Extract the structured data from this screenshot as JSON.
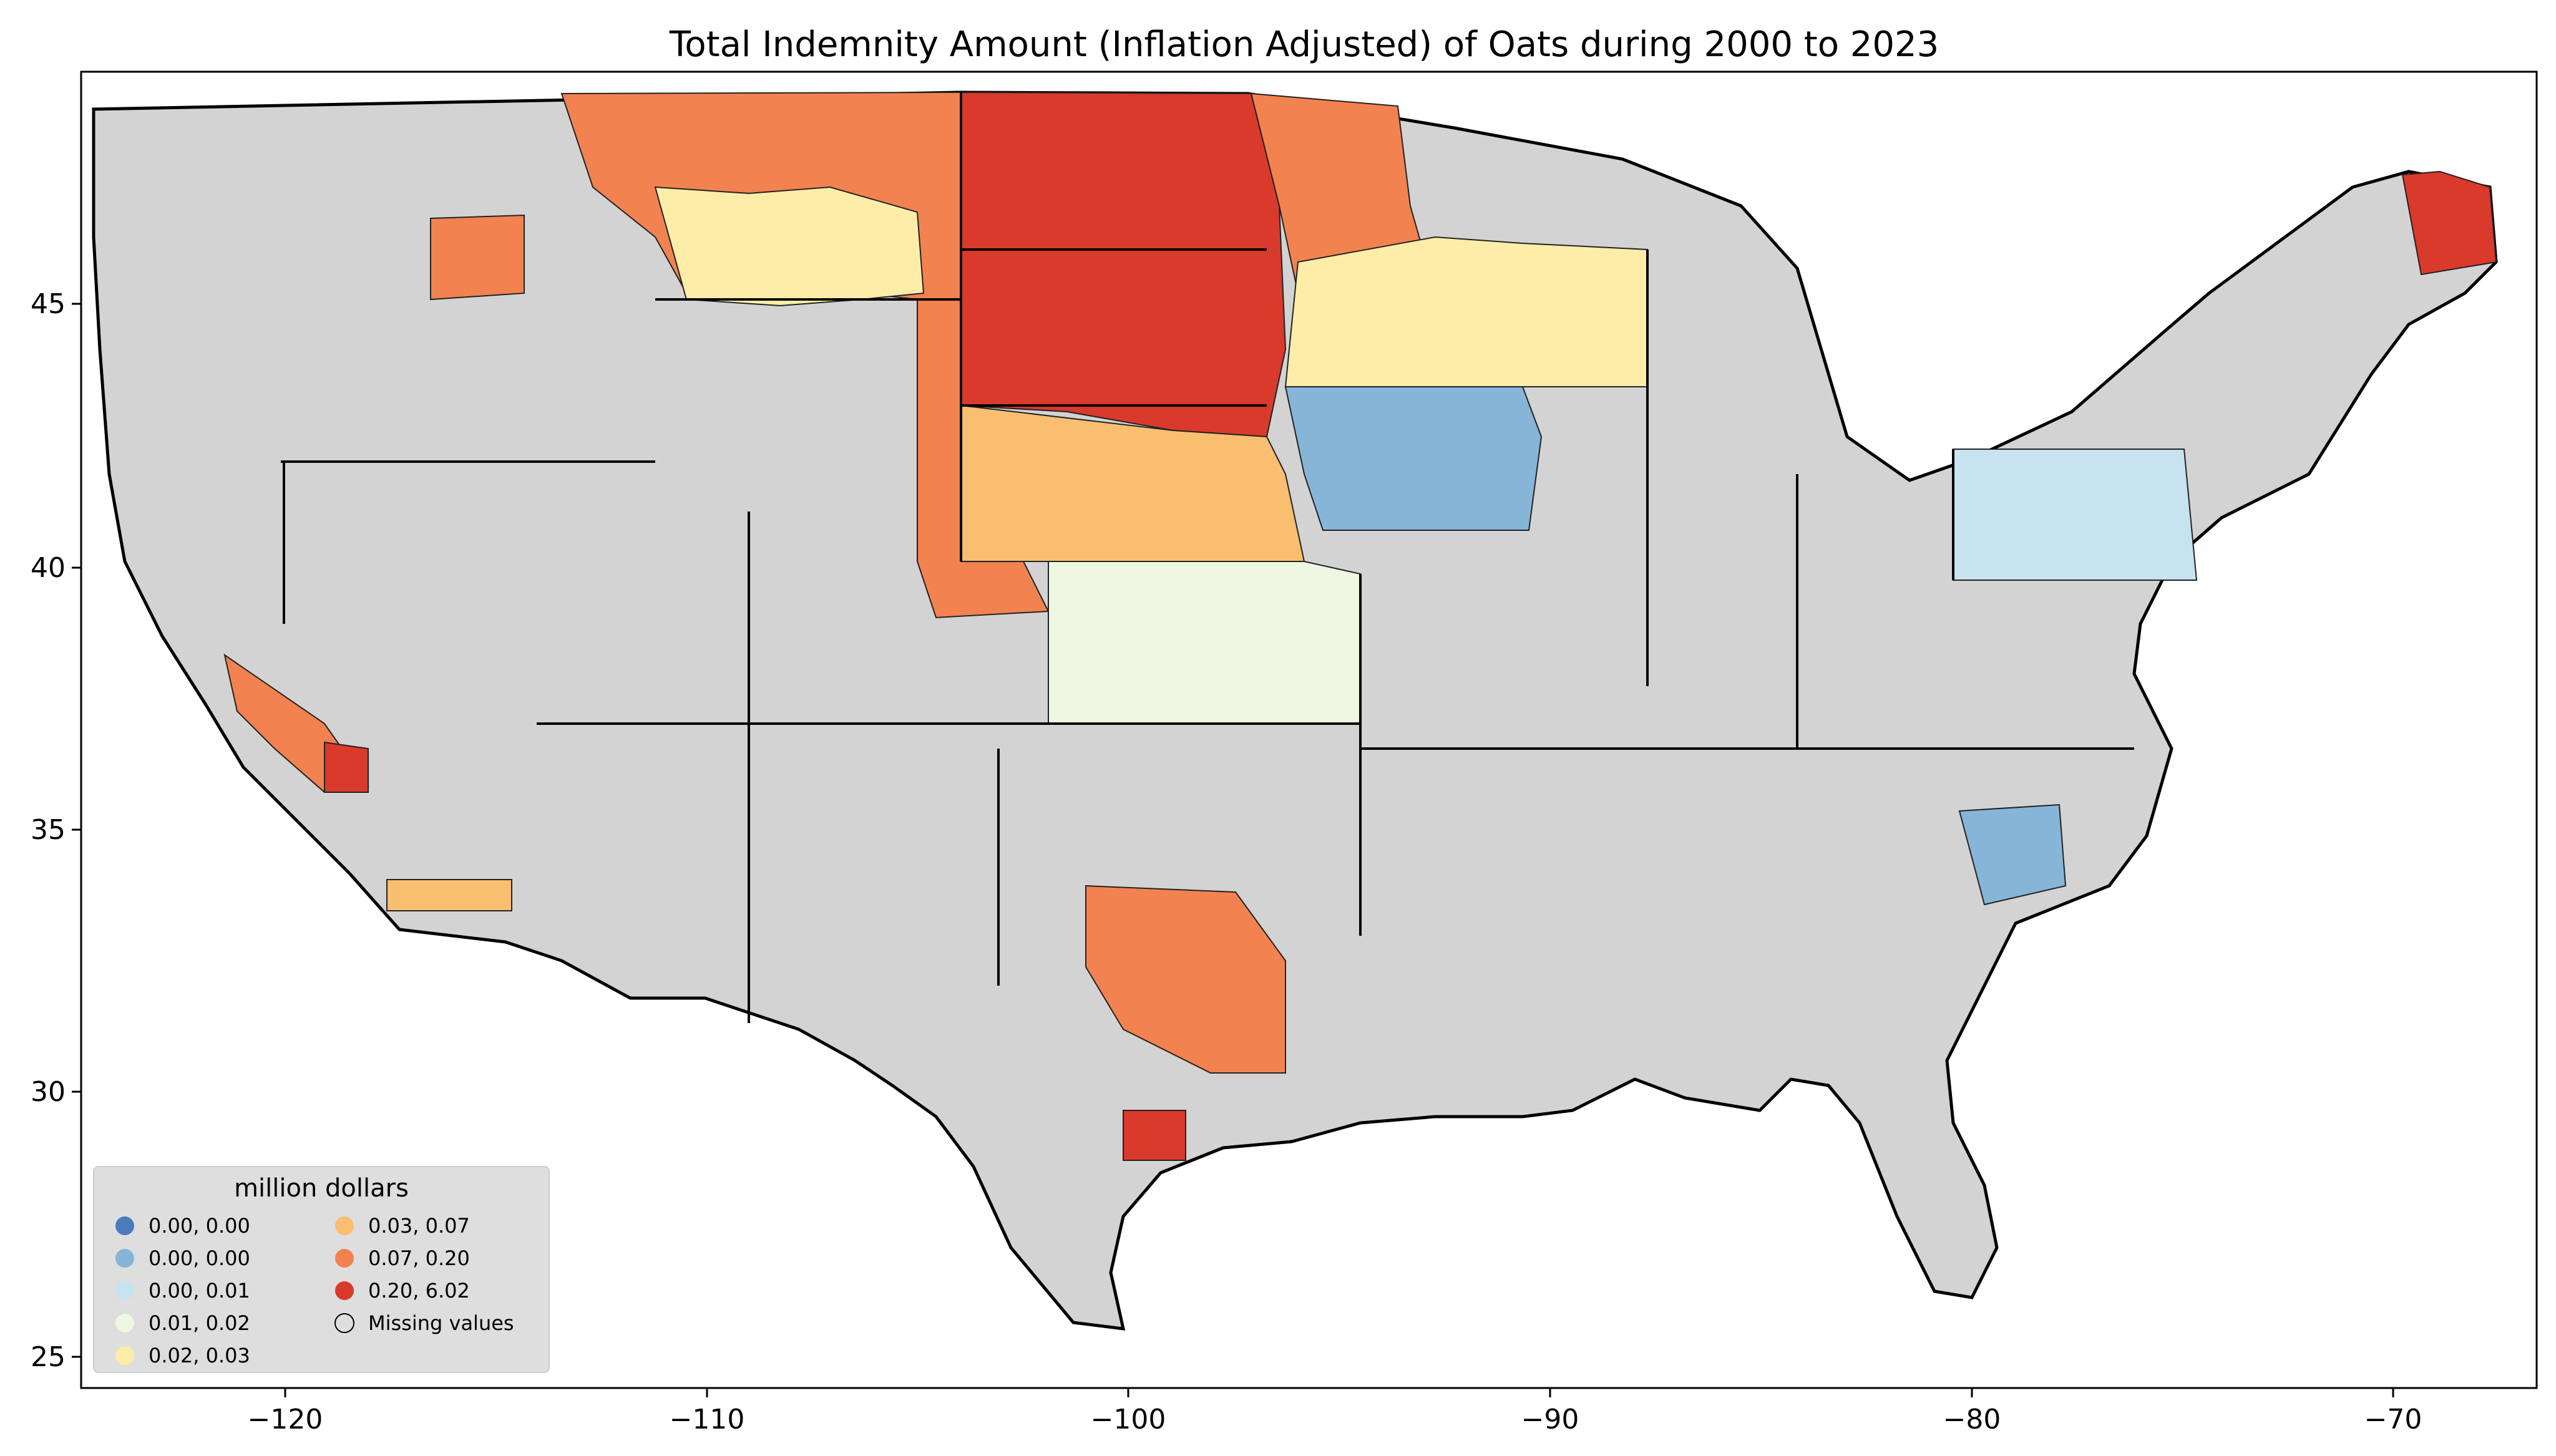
{
  "title": "Total Indemnity Amount  (Inflation Adjusted) of Oats during 2000 to 2023",
  "x_axis": {
    "ticks": [
      "−120",
      "−110",
      "−100",
      "−90",
      "−80",
      "−70"
    ]
  },
  "y_axis": {
    "ticks": [
      "45",
      "40",
      "35",
      "30",
      "25"
    ]
  },
  "legend": {
    "title": "million dollars",
    "placement": "lower-left",
    "entries": [
      {
        "label": "0.00, 0.00",
        "color": "#4a7bbd"
      },
      {
        "label": "0.00, 0.00",
        "color": "#86b5d8"
      },
      {
        "label": "0.00, 0.01",
        "color": "#c6e3ef"
      },
      {
        "label": "0.01, 0.02",
        "color": "#eef7e2"
      },
      {
        "label": "0.02, 0.03",
        "color": "#fdeda8"
      },
      {
        "label": "0.03, 0.07",
        "color": "#f9be6f"
      },
      {
        "label": "0.07, 0.20",
        "color": "#f28250"
      },
      {
        "label": "0.20, 6.02",
        "color": "#d93a2b"
      },
      {
        "label": "Missing values",
        "color": "#d3d3d3"
      }
    ]
  },
  "map_colors": {
    "missing": "#d3d3d3",
    "border": "#000000",
    "background": "#ffffff"
  }
}
